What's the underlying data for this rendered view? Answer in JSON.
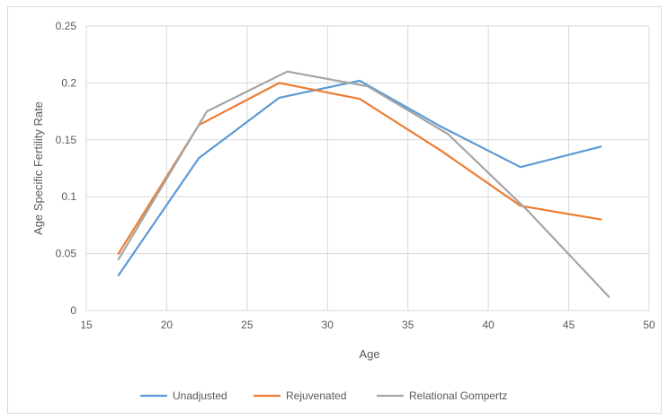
{
  "chart_data": {
    "type": "line",
    "title": "",
    "xlabel": "Age",
    "ylabel": "Age Specific Fertility Rate",
    "xlim": [
      15,
      50
    ],
    "ylim": [
      0,
      0.25
    ],
    "x_ticks": [
      15,
      20,
      25,
      30,
      35,
      40,
      45,
      50
    ],
    "y_ticks": [
      0,
      0.05,
      0.1,
      0.15,
      0.2,
      0.25
    ],
    "x_tick_labels": [
      "15",
      "20",
      "25",
      "30",
      "35",
      "40",
      "45",
      "50"
    ],
    "y_tick_labels": [
      "0",
      "0.05",
      "0.1",
      "0.15",
      "0.2",
      "0.25"
    ],
    "grid": "vertical and horizontal",
    "legend_position": "bottom",
    "series": [
      {
        "name": "Unadjusted",
        "color": "#5b9bd5",
        "x": [
          17,
          22,
          27,
          32,
          37,
          42,
          47
        ],
        "values": [
          0.031,
          0.134,
          0.187,
          0.202,
          0.162,
          0.126,
          0.144
        ]
      },
      {
        "name": "Rejuvenated",
        "color": "#ed7d31",
        "x": [
          17,
          22,
          27,
          32,
          37,
          42,
          47
        ],
        "values": [
          0.05,
          0.163,
          0.2,
          0.186,
          0.141,
          0.092,
          0.08
        ]
      },
      {
        "name": "Relational Gompertz",
        "color": "#a5a5a5",
        "x": [
          17,
          22.5,
          27.5,
          32.5,
          37.5,
          42.5,
          47.5
        ],
        "values": [
          0.045,
          0.175,
          0.21,
          0.197,
          0.155,
          0.087,
          0.012
        ]
      }
    ]
  }
}
